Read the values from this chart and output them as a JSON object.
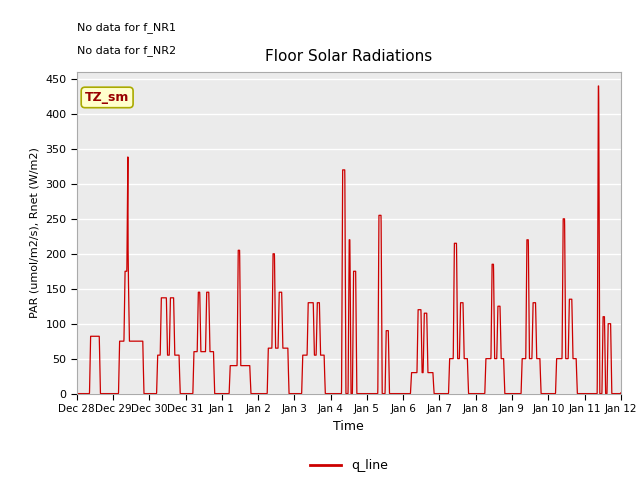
{
  "title": "Floor Solar Radiations",
  "xlabel": "Time",
  "ylabel": "PAR (umol/m2/s), Rnet (W/m2)",
  "legend_label": "q_line",
  "legend_color": "#cc0000",
  "line_color": "#cc0000",
  "annotation_text1": "No data for f_NR1",
  "annotation_text2": "No data for f_NR2",
  "tz_label": "TZ_sm",
  "tz_box_color": "#ffffcc",
  "tz_text_color": "#990000",
  "ylim": [
    0,
    460
  ],
  "yticks": [
    0,
    50,
    100,
    150,
    200,
    250,
    300,
    350,
    400,
    450
  ],
  "background_color": "#ebebeb",
  "xtick_labels": [
    "Dec 28",
    "Dec 29",
    "Dec 30",
    "Dec 31",
    "Jan 1",
    "Jan 2",
    "Jan 3",
    "Jan 4",
    "Jan 5",
    "Jan 6",
    "Jan 7",
    "Jan 8",
    "Jan 9",
    "Jan 10",
    "Jan 11",
    "Jan 12"
  ],
  "xtick_positions": [
    0,
    1,
    2,
    3,
    4,
    5,
    6,
    7,
    8,
    9,
    10,
    11,
    12,
    13,
    14,
    15
  ]
}
